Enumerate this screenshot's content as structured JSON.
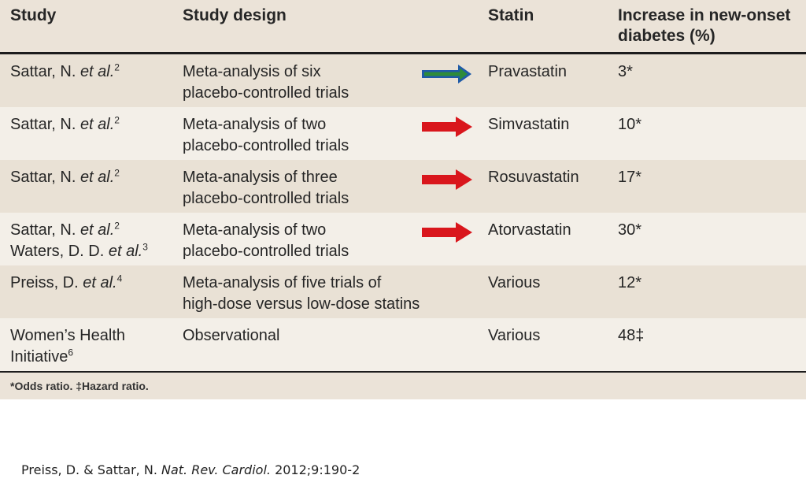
{
  "headers": {
    "study": "Study",
    "design": "Study design",
    "statin": "Statin",
    "increase_line1": "Increase in new-onset",
    "increase_line2": "diabetes (%)"
  },
  "rows": [
    {
      "study1": "Sattar, N. ",
      "study1_it": "et al.",
      "study1_sup": "2",
      "design1": "Meta-analysis of six",
      "design2": "placebo-controlled trials",
      "arrow_color": "#1f5aa8",
      "arrow_color2": "#2e8b3a",
      "statin": "Pravastatin",
      "increase": "3*"
    },
    {
      "study1": "Sattar, N. ",
      "study1_it": "et al.",
      "study1_sup": "2",
      "design1": "Meta-analysis of two",
      "design2": "placebo-controlled trials",
      "arrow_color": "#d9161c",
      "statin": "Simvastatin",
      "increase": "10*"
    },
    {
      "study1": "Sattar, N. ",
      "study1_it": "et al.",
      "study1_sup": "2",
      "design1": "Meta-analysis of three",
      "design2": "placebo-controlled trials",
      "arrow_color": "#d9161c",
      "statin": "Rosuvastatin",
      "increase": "17*"
    },
    {
      "study1": "Sattar, N. ",
      "study1_it": "et al.",
      "study1_sup": "2",
      "study2": "Waters, D. D. ",
      "study2_it": "et al.",
      "study2_sup": "3",
      "design1": "Meta-analysis of two",
      "design2": "placebo-controlled trials",
      "arrow_color": "#d9161c",
      "statin": "Atorvastatin",
      "increase": "30*"
    },
    {
      "study1": "Preiss, D. ",
      "study1_it": "et al.",
      "study1_sup": "4",
      "design1": "Meta-analysis of five trials of",
      "design2": "high-dose versus low-dose statins",
      "statin": "Various",
      "increase": "12*"
    },
    {
      "study1": "Women’s Health",
      "study2": "Initiative",
      "study2_sup": "6",
      "design1": "Observational",
      "statin": "Various",
      "increase": "48‡"
    }
  ],
  "footnote": "*Odds ratio. ‡Hazard ratio.",
  "citation": {
    "authors": "Preiss, D. & Sattar, N. ",
    "journal": "Nat. Rev. Cardiol.",
    "ref": " 2012;9:190-2"
  }
}
